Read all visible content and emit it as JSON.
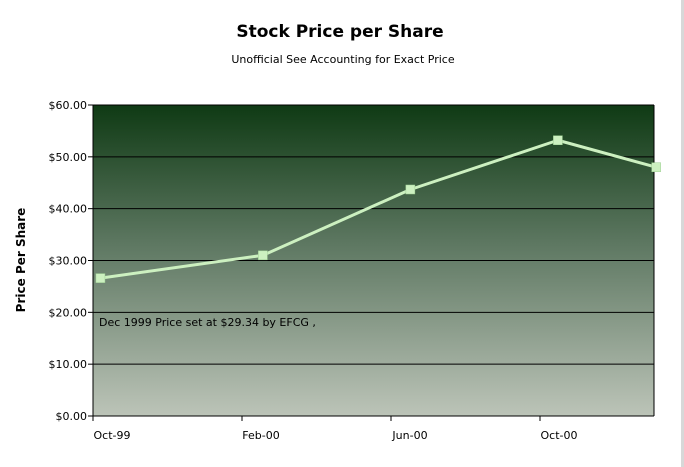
{
  "chart_data": {
    "type": "line",
    "title": "Stock Price per Share",
    "subtitle": "Unofficial See Accounting for Exact Price",
    "ylabel": "Price Per Share",
    "xlabel": "",
    "x_tick_labels": [
      "Oct-99",
      "Feb-00",
      "Jun-00",
      "Oct-00"
    ],
    "y_tick_labels": [
      "$0.00",
      "$10.00",
      "$20.00",
      "$30.00",
      "$40.00",
      "$50.00",
      "$60.00"
    ],
    "ylim": [
      0,
      60
    ],
    "grid": true,
    "series": [
      {
        "values": [
          26.6,
          31.0,
          43.7,
          53.2,
          48.0
        ],
        "color": "#ccf0c0"
      }
    ],
    "point_positions": [
      0.05,
      1.14,
      2.13,
      3.12,
      3.78
    ],
    "annotation": "Dec 1999 Price set at $29.34 by EFCG ,",
    "colors": {
      "plot_top": "#0f3a14",
      "plot_bottom": "#bcc4b8",
      "line": "#ccf0c0",
      "marker": "#ccf0c0"
    }
  }
}
